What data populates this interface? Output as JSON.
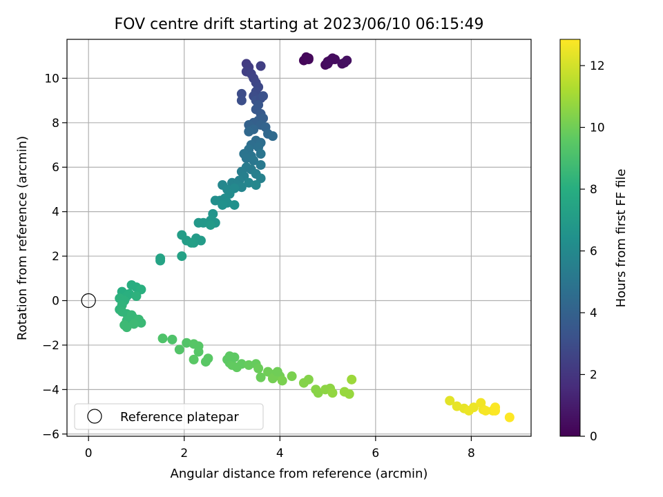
{
  "chart_data": {
    "type": "scatter",
    "title": "FOV centre drift starting at 2023/06/10 06:15:49",
    "xlabel": "Angular distance from reference (arcmin)",
    "ylabel": "Rotation from reference (arcmin)",
    "xlim": [
      -0.45,
      9.25
    ],
    "ylim": [
      -6.1,
      11.75
    ],
    "xticks": [
      0,
      2,
      4,
      6,
      8
    ],
    "yticks": [
      -6,
      -4,
      -2,
      0,
      2,
      4,
      6,
      8,
      10
    ],
    "grid": true,
    "legend": {
      "position": "lower-left",
      "entries": [
        "Reference platepar"
      ]
    },
    "reference_point": {
      "x": 0,
      "y": 0,
      "label": "Reference platepar"
    },
    "colorbar": {
      "label": "Hours from first FF file",
      "colormap": "viridis",
      "range": [
        0,
        12.85
      ],
      "ticks": [
        0,
        2,
        4,
        6,
        8,
        10,
        12
      ]
    },
    "series": [
      {
        "points": [
          [
            4.5,
            10.8,
            0.2
          ],
          [
            4.6,
            10.9,
            0.2
          ],
          [
            4.55,
            10.95,
            0.25
          ],
          [
            4.6,
            10.85,
            0.3
          ],
          [
            4.95,
            10.6,
            0.3
          ],
          [
            5.0,
            10.75,
            0.35
          ],
          [
            5.05,
            10.8,
            0.35
          ],
          [
            5.1,
            10.9,
            0.4
          ],
          [
            5.15,
            10.85,
            0.4
          ],
          [
            5.0,
            10.65,
            0.45
          ],
          [
            5.3,
            10.65,
            0.5
          ],
          [
            5.35,
            10.7,
            0.5
          ],
          [
            5.4,
            10.8,
            0.55
          ],
          [
            3.3,
            10.65,
            2.2
          ],
          [
            3.35,
            10.5,
            2.3
          ],
          [
            3.3,
            10.3,
            2.4
          ],
          [
            3.4,
            10.2,
            2.5
          ],
          [
            3.6,
            10.55,
            2.4
          ],
          [
            3.45,
            10.0,
            2.6
          ],
          [
            3.5,
            9.8,
            2.7
          ],
          [
            3.55,
            9.6,
            2.8
          ],
          [
            3.5,
            9.4,
            2.9
          ],
          [
            3.45,
            9.2,
            3.0
          ],
          [
            3.2,
            9.3,
            3.0
          ],
          [
            3.2,
            9.0,
            3.1
          ],
          [
            3.5,
            9.0,
            3.2
          ],
          [
            3.6,
            9.1,
            3.1
          ],
          [
            3.65,
            9.2,
            3.2
          ],
          [
            3.55,
            8.8,
            3.4
          ],
          [
            3.5,
            8.6,
            3.5
          ],
          [
            3.6,
            8.4,
            3.6
          ],
          [
            3.55,
            8.1,
            3.8
          ],
          [
            3.65,
            8.2,
            3.8
          ],
          [
            3.45,
            8.0,
            3.9
          ],
          [
            3.35,
            7.9,
            4.0
          ],
          [
            3.6,
            7.9,
            4.0
          ],
          [
            3.7,
            7.8,
            4.1
          ],
          [
            3.45,
            7.7,
            4.2
          ],
          [
            3.35,
            7.6,
            4.3
          ],
          [
            3.75,
            7.5,
            4.3
          ],
          [
            3.85,
            7.4,
            4.4
          ],
          [
            3.5,
            7.2,
            4.5
          ],
          [
            3.6,
            7.1,
            4.6
          ],
          [
            3.4,
            7.0,
            4.6
          ],
          [
            3.55,
            6.9,
            4.7
          ],
          [
            3.35,
            6.8,
            4.8
          ],
          [
            3.25,
            6.6,
            4.9
          ],
          [
            3.4,
            6.5,
            4.9
          ],
          [
            3.6,
            6.6,
            5.0
          ],
          [
            3.3,
            6.4,
            5.0
          ],
          [
            3.45,
            6.3,
            5.1
          ],
          [
            3.6,
            6.1,
            5.2
          ],
          [
            3.3,
            6.0,
            5.3
          ],
          [
            3.4,
            5.9,
            5.3
          ],
          [
            3.2,
            5.8,
            5.4
          ],
          [
            3.25,
            5.6,
            5.5
          ],
          [
            3.5,
            5.7,
            5.5
          ],
          [
            3.6,
            5.5,
            5.6
          ],
          [
            3.15,
            5.4,
            5.6
          ],
          [
            3.0,
            5.3,
            5.7
          ],
          [
            3.1,
            5.2,
            5.7
          ],
          [
            3.2,
            5.1,
            5.8
          ],
          [
            3.35,
            5.3,
            5.8
          ],
          [
            3.5,
            5.2,
            5.9
          ],
          [
            2.8,
            5.2,
            5.9
          ],
          [
            2.9,
            5.0,
            6.0
          ],
          [
            3.05,
            5.05,
            6.0
          ],
          [
            2.95,
            4.8,
            6.1
          ],
          [
            2.85,
            4.6,
            6.2
          ],
          [
            2.75,
            4.5,
            6.2
          ],
          [
            2.65,
            4.5,
            6.3
          ],
          [
            2.9,
            4.4,
            6.3
          ],
          [
            2.8,
            4.3,
            6.4
          ],
          [
            3.05,
            4.3,
            6.4
          ],
          [
            2.6,
            3.9,
            6.6
          ],
          [
            2.55,
            3.6,
            6.7
          ],
          [
            2.65,
            3.5,
            6.7
          ],
          [
            2.4,
            3.5,
            6.8
          ],
          [
            2.3,
            3.5,
            6.8
          ],
          [
            2.55,
            3.4,
            6.9
          ],
          [
            2.25,
            2.8,
            7.0
          ],
          [
            2.35,
            2.7,
            7.0
          ],
          [
            2.2,
            2.6,
            7.1
          ],
          [
            2.05,
            2.7,
            7.1
          ],
          [
            2.15,
            2.6,
            7.2
          ],
          [
            1.95,
            2.95,
            7.1
          ],
          [
            1.95,
            2.0,
            7.3
          ],
          [
            1.5,
            1.9,
            7.4
          ],
          [
            1.5,
            1.8,
            7.4
          ],
          [
            0.7,
            0.4,
            8.0
          ],
          [
            0.75,
            0.3,
            8.0
          ],
          [
            0.85,
            0.3,
            8.1
          ],
          [
            0.9,
            0.7,
            8.0
          ],
          [
            1.0,
            0.6,
            8.0
          ],
          [
            1.1,
            0.5,
            8.1
          ],
          [
            0.8,
            0.2,
            8.1
          ],
          [
            0.65,
            0.1,
            8.2
          ],
          [
            0.75,
            0.0,
            8.2
          ],
          [
            1.0,
            0.2,
            8.2
          ],
          [
            0.7,
            -0.2,
            8.3
          ],
          [
            0.65,
            -0.4,
            8.3
          ],
          [
            0.7,
            -0.5,
            8.4
          ],
          [
            0.8,
            -0.6,
            8.4
          ],
          [
            0.9,
            -0.65,
            8.5
          ],
          [
            0.95,
            -0.8,
            8.5
          ],
          [
            1.05,
            -0.85,
            8.6
          ],
          [
            1.1,
            -1.0,
            8.6
          ],
          [
            0.85,
            -1.0,
            8.6
          ],
          [
            0.8,
            -0.9,
            8.5
          ],
          [
            0.75,
            -1.1,
            8.7
          ],
          [
            0.8,
            -1.2,
            8.7
          ],
          [
            0.95,
            -1.05,
            8.7
          ],
          [
            1.55,
            -1.7,
            9.2
          ],
          [
            1.75,
            -1.75,
            9.2
          ],
          [
            1.9,
            -2.2,
            9.3
          ],
          [
            2.05,
            -1.9,
            9.3
          ],
          [
            2.2,
            -1.95,
            9.4
          ],
          [
            2.3,
            -2.05,
            9.4
          ],
          [
            2.3,
            -2.3,
            9.4
          ],
          [
            2.2,
            -2.65,
            9.5
          ],
          [
            2.45,
            -2.75,
            9.5
          ],
          [
            2.5,
            -2.6,
            9.5
          ],
          [
            2.9,
            -2.65,
            9.6
          ],
          [
            2.95,
            -2.8,
            9.6
          ],
          [
            3.0,
            -2.9,
            9.7
          ],
          [
            3.1,
            -3.0,
            9.7
          ],
          [
            3.05,
            -2.55,
            9.6
          ],
          [
            2.95,
            -2.5,
            9.6
          ],
          [
            3.2,
            -2.85,
            9.7
          ],
          [
            3.35,
            -2.9,
            9.8
          ],
          [
            3.5,
            -2.85,
            9.8
          ],
          [
            3.55,
            -3.05,
            9.9
          ],
          [
            3.6,
            -3.45,
            9.9
          ],
          [
            3.75,
            -3.2,
            10.0
          ],
          [
            3.9,
            -3.3,
            10.0
          ],
          [
            3.85,
            -3.5,
            10.1
          ],
          [
            4.0,
            -3.4,
            10.1
          ],
          [
            3.95,
            -3.2,
            10.0
          ],
          [
            4.05,
            -3.6,
            10.2
          ],
          [
            4.25,
            -3.4,
            10.2
          ],
          [
            4.5,
            -3.7,
            10.4
          ],
          [
            4.6,
            -3.55,
            10.4
          ],
          [
            4.75,
            -4.0,
            10.5
          ],
          [
            4.8,
            -4.15,
            10.5
          ],
          [
            4.95,
            -4.0,
            10.6
          ],
          [
            5.05,
            -3.95,
            10.6
          ],
          [
            5.1,
            -4.15,
            10.7
          ],
          [
            5.35,
            -4.1,
            10.8
          ],
          [
            5.45,
            -4.2,
            10.8
          ],
          [
            5.5,
            -3.55,
            10.9
          ],
          [
            7.55,
            -4.5,
            12.3
          ],
          [
            7.7,
            -4.75,
            12.4
          ],
          [
            7.85,
            -4.85,
            12.4
          ],
          [
            7.95,
            -4.95,
            12.5
          ],
          [
            8.05,
            -4.8,
            12.5
          ],
          [
            8.2,
            -4.6,
            12.6
          ],
          [
            8.25,
            -4.9,
            12.6
          ],
          [
            8.3,
            -4.95,
            12.7
          ],
          [
            8.45,
            -4.95,
            12.7
          ],
          [
            8.5,
            -4.8,
            12.8
          ],
          [
            8.5,
            -4.95,
            12.8
          ],
          [
            8.8,
            -5.25,
            12.85
          ]
        ]
      }
    ]
  }
}
